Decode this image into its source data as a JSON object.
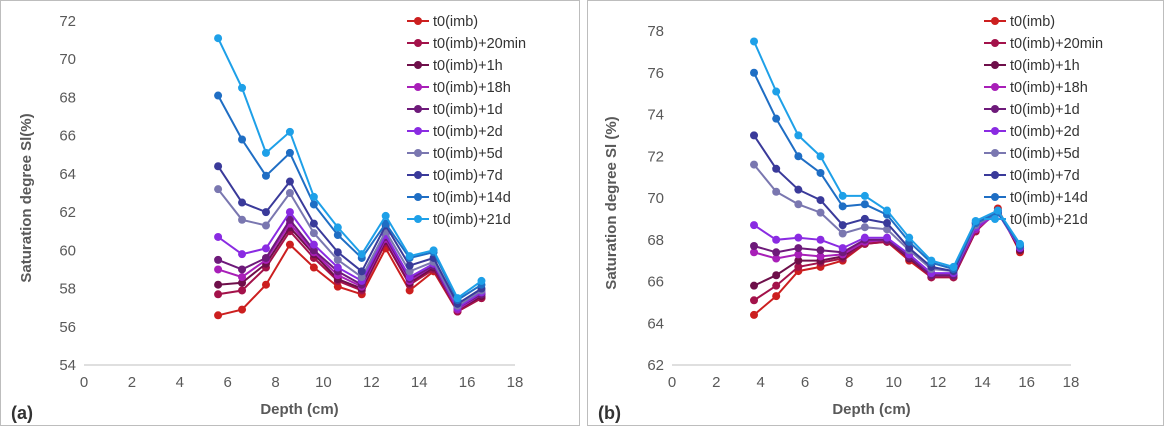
{
  "chart_data": [
    {
      "type": "line",
      "panel_label": "(a)",
      "xlabel": "Depth (cm)",
      "ylabel": "Saturation degree Sl(%)",
      "xlim": [
        0,
        18
      ],
      "ylim": [
        54,
        72
      ],
      "xticks": [
        0,
        2,
        4,
        6,
        8,
        10,
        12,
        14,
        16,
        18
      ],
      "yticks": [
        54,
        56,
        58,
        60,
        62,
        64,
        66,
        68,
        70,
        72
      ],
      "grid": false,
      "legend": "top-right",
      "x": [
        5.6,
        6.6,
        7.6,
        8.6,
        9.6,
        10.6,
        11.6,
        12.6,
        13.6,
        14.6,
        15.6,
        16.6
      ],
      "series": [
        {
          "name": "t0(imb)",
          "color": "#cc1f1f",
          "values": [
            56.6,
            56.9,
            58.2,
            60.3,
            59.1,
            58.1,
            57.7,
            60.1,
            57.9,
            58.9,
            56.8,
            57.5
          ]
        },
        {
          "name": "t0(imb)+20min",
          "color": "#a3124a",
          "values": [
            57.7,
            57.9,
            59.1,
            61.0,
            59.6,
            58.4,
            57.9,
            60.4,
            58.2,
            59.0,
            56.8,
            57.5
          ]
        },
        {
          "name": "t0(imb)+1h",
          "color": "#6e0f4a",
          "values": [
            58.2,
            58.3,
            59.3,
            61.2,
            59.8,
            58.5,
            58.0,
            60.5,
            58.3,
            59.1,
            56.9,
            57.6
          ]
        },
        {
          "name": "t0(imb)+18h",
          "color": "#a81fb8",
          "values": [
            59.0,
            58.6,
            59.5,
            61.4,
            59.9,
            58.7,
            58.1,
            60.6,
            58.4,
            59.2,
            56.9,
            57.7
          ]
        },
        {
          "name": "t0(imb)+1d",
          "color": "#6e1a7a",
          "values": [
            59.5,
            59.0,
            59.6,
            61.6,
            60.0,
            58.9,
            58.2,
            60.7,
            58.5,
            59.2,
            57.0,
            57.7
          ]
        },
        {
          "name": "t0(imb)+2d",
          "color": "#8a2be2",
          "values": [
            60.7,
            59.8,
            60.1,
            62.0,
            60.3,
            59.1,
            58.4,
            60.8,
            58.6,
            59.3,
            57.0,
            57.8
          ]
        },
        {
          "name": "t0(imb)+5d",
          "color": "#7a77b0",
          "values": [
            63.2,
            61.6,
            61.3,
            63.0,
            60.9,
            59.5,
            58.6,
            61.0,
            58.9,
            59.4,
            57.1,
            57.9
          ]
        },
        {
          "name": "t0(imb)+7d",
          "color": "#3a3a9a",
          "values": [
            64.4,
            62.5,
            62.0,
            63.6,
            61.4,
            59.9,
            58.9,
            61.3,
            59.2,
            59.6,
            57.2,
            58.0
          ]
        },
        {
          "name": "t0(imb)+14d",
          "color": "#1f6ec4",
          "values": [
            68.1,
            65.8,
            63.9,
            65.1,
            62.4,
            60.8,
            59.6,
            61.4,
            59.6,
            59.9,
            57.4,
            58.2
          ]
        },
        {
          "name": "t0(imb)+21d",
          "color": "#1ea0e8",
          "values": [
            71.1,
            68.5,
            65.1,
            66.2,
            62.8,
            61.2,
            59.8,
            61.8,
            59.7,
            60.0,
            57.5,
            58.4
          ]
        }
      ]
    },
    {
      "type": "line",
      "panel_label": "(b)",
      "xlabel": "Depth (cm)",
      "ylabel": "Saturation degree Sl (%)",
      "xlim": [
        0,
        18
      ],
      "ylim": [
        62,
        78
      ],
      "xticks": [
        0,
        2,
        4,
        6,
        8,
        10,
        12,
        14,
        16,
        18
      ],
      "yticks": [
        62,
        64,
        66,
        68,
        70,
        72,
        74,
        76,
        78
      ],
      "grid": false,
      "legend": "top-right",
      "x": [
        3.7,
        4.7,
        5.7,
        6.7,
        7.7,
        8.7,
        9.7,
        10.7,
        11.7,
        12.7,
        13.7,
        14.7,
        15.7
      ],
      "series": [
        {
          "name": "t0(imb)",
          "color": "#cc1f1f",
          "values": [
            64.4,
            65.3,
            66.5,
            66.7,
            67.0,
            67.8,
            67.9,
            67.0,
            66.2,
            66.2,
            68.4,
            69.5,
            67.4
          ]
        },
        {
          "name": "t0(imb)+20min",
          "color": "#a3124a",
          "values": [
            65.1,
            65.8,
            66.7,
            66.9,
            67.1,
            67.8,
            67.9,
            67.1,
            66.2,
            66.2,
            68.4,
            69.4,
            67.5
          ]
        },
        {
          "name": "t0(imb)+1h",
          "color": "#6e0f4a",
          "values": [
            65.8,
            66.3,
            67.0,
            67.0,
            67.2,
            67.9,
            68.0,
            67.1,
            66.3,
            66.3,
            68.5,
            69.4,
            67.5
          ]
        },
        {
          "name": "t0(imb)+18h",
          "color": "#a81fb8",
          "values": [
            67.4,
            67.1,
            67.3,
            67.2,
            67.3,
            67.9,
            68.0,
            67.2,
            66.3,
            66.3,
            68.5,
            69.3,
            67.6
          ]
        },
        {
          "name": "t0(imb)+1d",
          "color": "#6e1a7a",
          "values": [
            67.7,
            67.4,
            67.6,
            67.5,
            67.4,
            68.0,
            68.0,
            67.2,
            66.3,
            66.3,
            68.6,
            69.3,
            67.6
          ]
        },
        {
          "name": "t0(imb)+2d",
          "color": "#8a2be2",
          "values": [
            68.7,
            68.0,
            68.1,
            68.0,
            67.6,
            68.1,
            68.1,
            67.3,
            66.4,
            66.4,
            68.6,
            69.3,
            67.6
          ]
        },
        {
          "name": "t0(imb)+5d",
          "color": "#7a77b0",
          "values": [
            71.6,
            70.3,
            69.7,
            69.3,
            68.3,
            68.6,
            68.5,
            67.5,
            66.6,
            66.5,
            68.7,
            69.3,
            67.7
          ]
        },
        {
          "name": "t0(imb)+7d",
          "color": "#3a3a9a",
          "values": [
            73.0,
            71.4,
            70.4,
            69.9,
            68.7,
            69.0,
            68.8,
            67.6,
            66.7,
            66.5,
            68.8,
            69.3,
            67.7
          ]
        },
        {
          "name": "t0(imb)+14d",
          "color": "#1f6ec4",
          "values": [
            76.0,
            73.8,
            72.0,
            71.2,
            69.6,
            69.7,
            69.2,
            67.9,
            66.9,
            66.6,
            68.8,
            69.3,
            67.7
          ]
        },
        {
          "name": "t0(imb)+21d",
          "color": "#1ea0e8",
          "values": [
            77.5,
            75.1,
            73.0,
            72.0,
            70.1,
            70.1,
            69.4,
            68.1,
            67.0,
            66.7,
            68.9,
            69.4,
            67.8
          ]
        }
      ]
    }
  ]
}
